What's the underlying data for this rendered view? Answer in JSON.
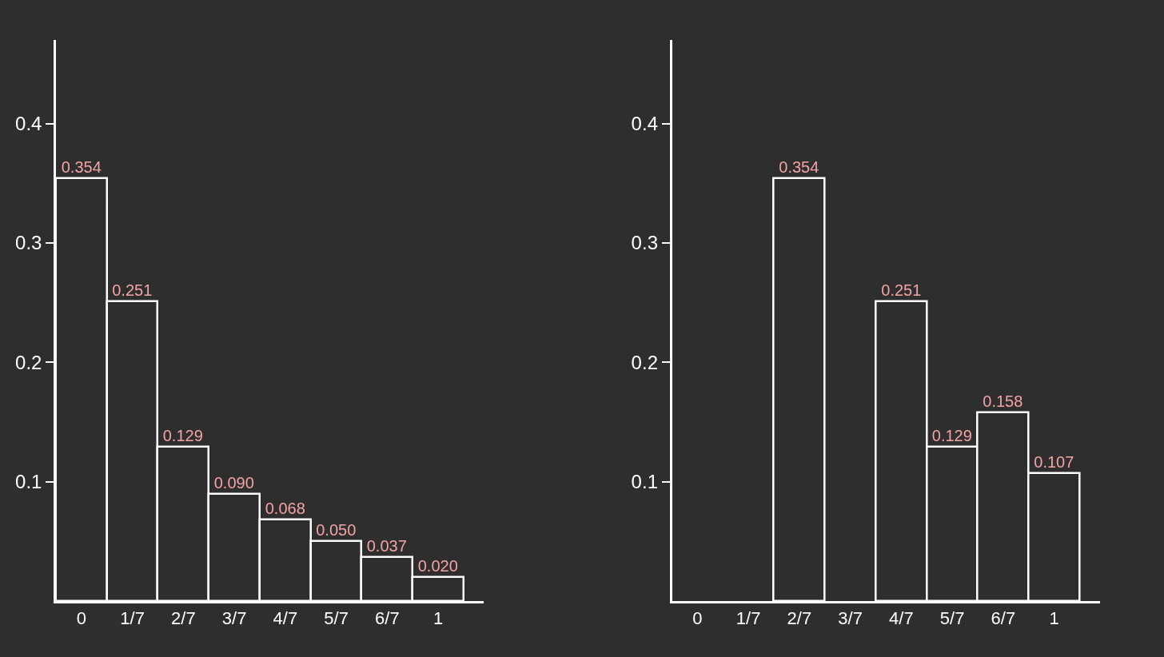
{
  "chart_data": [
    {
      "type": "bar",
      "categories": [
        "0",
        "1/7",
        "2/7",
        "3/7",
        "4/7",
        "5/7",
        "6/7",
        "1"
      ],
      "values": [
        0.354,
        0.251,
        0.129,
        0.09,
        0.068,
        0.05,
        0.037,
        0.02
      ],
      "value_labels": [
        "0.354",
        "0.251",
        "0.129",
        "0.090",
        "0.068",
        "0.050",
        "0.037",
        "0.020"
      ],
      "color": "#ffffff",
      "ylim": [
        0,
        0.47
      ],
      "yticks": [
        0.1,
        0.2,
        0.3,
        0.4
      ],
      "grid": false
    },
    {
      "type": "bar",
      "categories": [
        "0",
        "1/7",
        "2/7",
        "3/7",
        "4/7",
        "5/7",
        "6/7",
        "1"
      ],
      "values": [
        null,
        null,
        0.354,
        null,
        0.251,
        0.129,
        0.158,
        0.107
      ],
      "value_labels": [
        null,
        null,
        "0.354",
        null,
        "0.251",
        "0.129",
        "0.158",
        "0.107"
      ],
      "color": "#ffffff",
      "ylim": [
        0,
        0.47
      ],
      "yticks": [
        0.1,
        0.2,
        0.3,
        0.4
      ],
      "grid": false
    }
  ]
}
